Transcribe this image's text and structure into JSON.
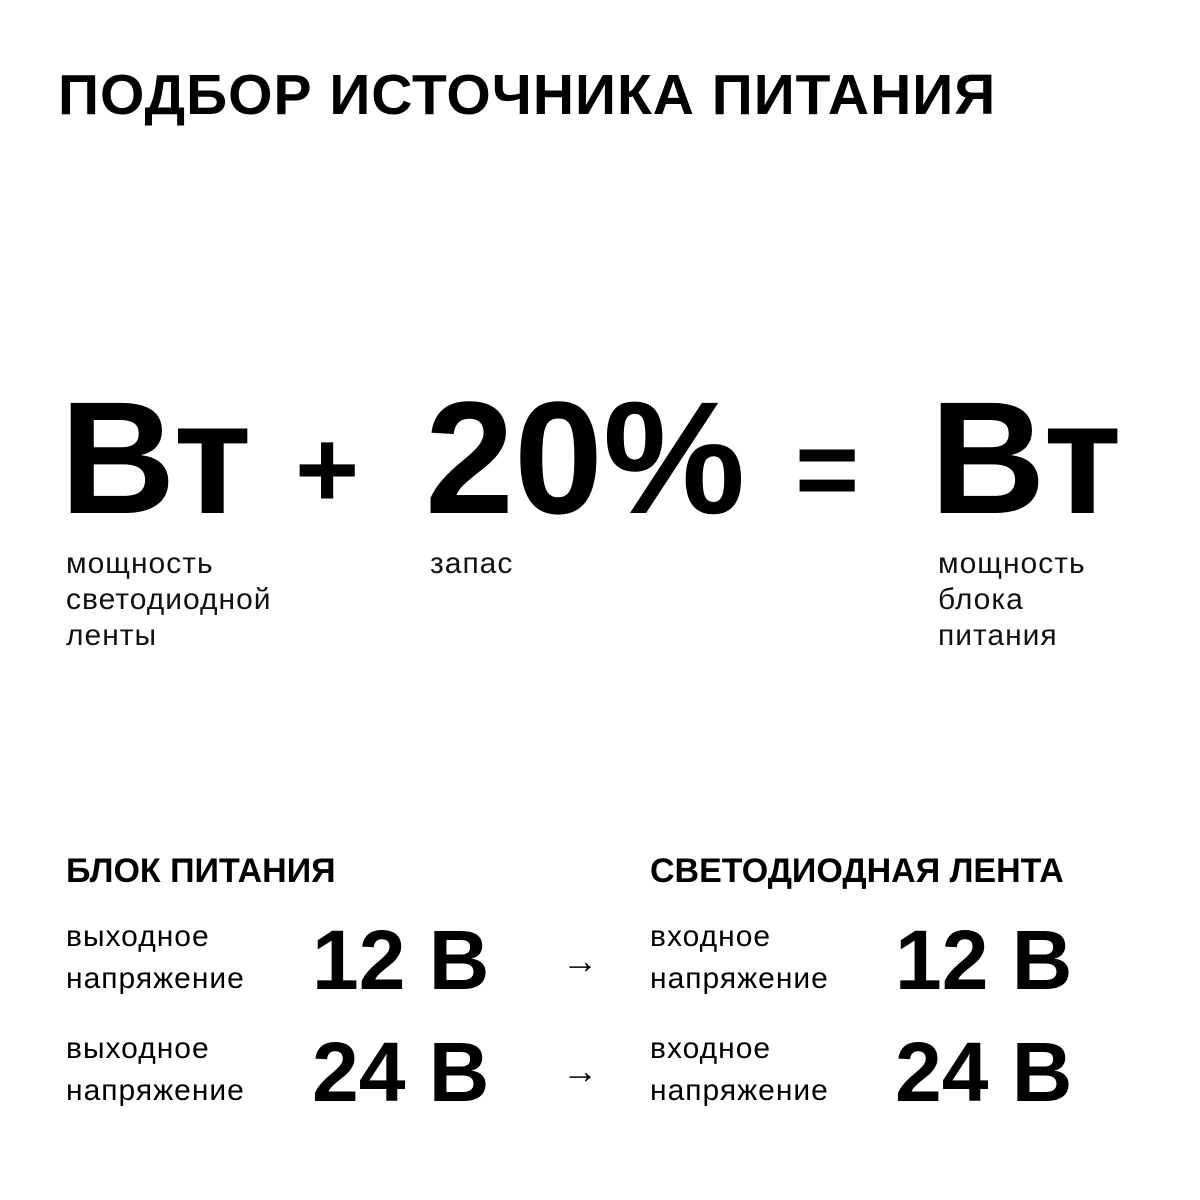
{
  "title": "ПОДБОР ИСТОЧНИКА ПИТАНИЯ",
  "formula": {
    "term1": "Вт",
    "plus": "+",
    "term2": "20%",
    "equals": "=",
    "result": "Вт",
    "label1": "мощность\nсветодиодной\nленты",
    "label2": "запас",
    "label3": "мощность\nблока\nпитания"
  },
  "left": {
    "heading": "БЛОК ПИТАНИЯ",
    "rows": [
      {
        "label": "выходное\nнапряжение",
        "value": "12 В"
      },
      {
        "label": "выходное\nнапряжение",
        "value": "24 В"
      }
    ]
  },
  "right": {
    "heading": "СВЕТОДИОДНАЯ ЛЕНТА",
    "rows": [
      {
        "label": "входное\nнапряжение",
        "value": "12 В"
      },
      {
        "label": "входное\nнапряжение",
        "value": "24 В"
      }
    ]
  },
  "arrow": "→"
}
